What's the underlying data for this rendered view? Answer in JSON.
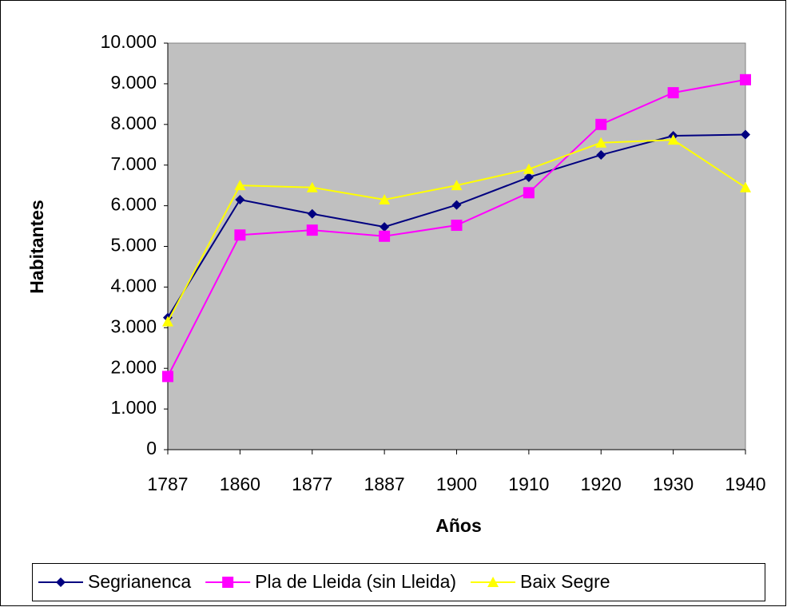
{
  "chart_data": {
    "type": "line",
    "x_label": "Años",
    "y_label": "Habitantes",
    "categories": [
      "1787",
      "1860",
      "1877",
      "1887",
      "1900",
      "1910",
      "1920",
      "1930",
      "1940"
    ],
    "series": [
      {
        "name": "Segrianenca",
        "color": "#000080",
        "marker": "diamond",
        "values": [
          3250,
          6150,
          5800,
          5480,
          6020,
          6700,
          7250,
          7720,
          7750
        ]
      },
      {
        "name": "Pla de Lleida (sin Lleida)",
        "color": "#ff00ff",
        "marker": "square",
        "values": [
          1800,
          5280,
          5400,
          5250,
          5520,
          6320,
          8000,
          8780,
          9100
        ]
      },
      {
        "name": "Baix Segre",
        "color": "#ffff00",
        "marker": "triangle",
        "values": [
          3150,
          6500,
          6450,
          6150,
          6500,
          6900,
          7550,
          7620,
          6450
        ]
      }
    ],
    "ylim": [
      0,
      10000
    ],
    "yticks": [
      0,
      {
        "value": 1000,
        "label": "1.000"
      },
      {
        "value": 2000,
        "label": "2.000"
      },
      {
        "value": 3000,
        "label": "3.000"
      },
      {
        "value": 4000,
        "label": "4.000"
      },
      {
        "value": 5000,
        "label": "5.000"
      },
      {
        "value": 6000,
        "label": "6.000"
      },
      {
        "value": 7000,
        "label": "7.000"
      },
      {
        "value": 8000,
        "label": "8.000"
      },
      {
        "value": 9000,
        "label": "9.000"
      },
      {
        "value": 10000,
        "label": "10.000"
      }
    ],
    "plot_background": "#c0c0c0",
    "legend": "bottom"
  }
}
